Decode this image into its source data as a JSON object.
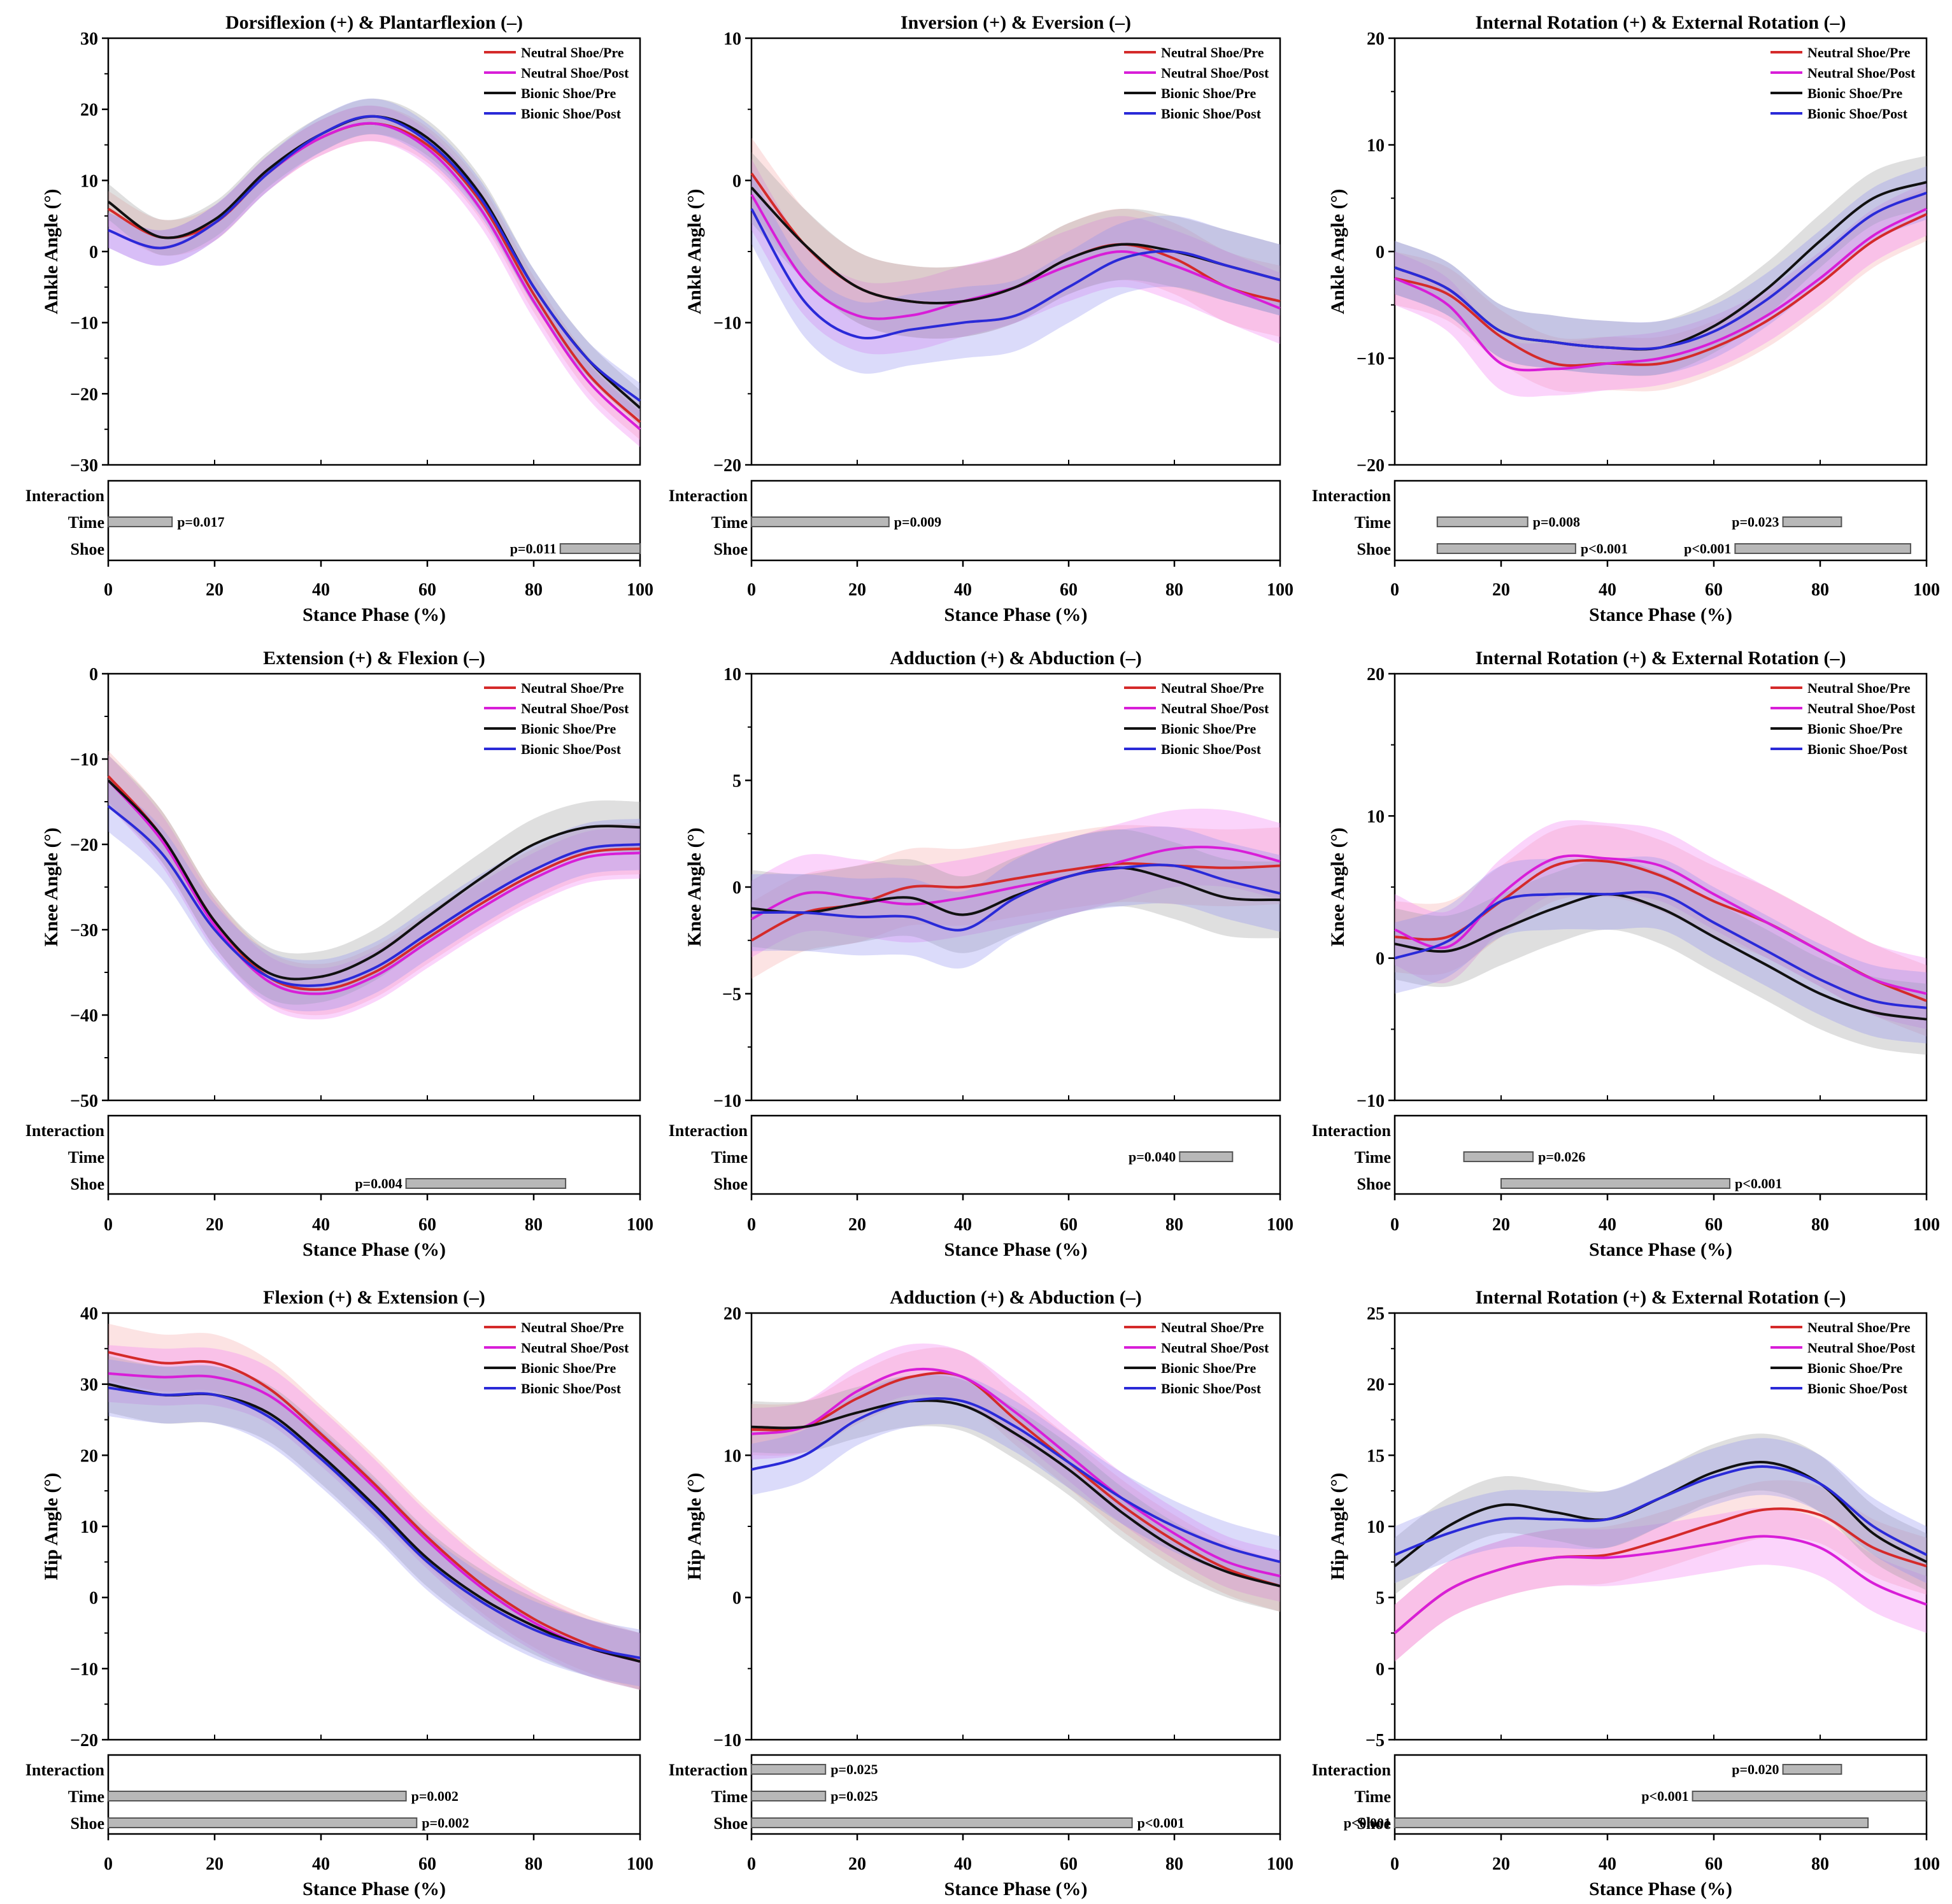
{
  "figure": {
    "xlabel": "Stance Phase (%)",
    "xticks": [
      0,
      20,
      40,
      60,
      80,
      100
    ],
    "sig_rows": [
      "Interaction",
      "Time",
      "Shoe"
    ],
    "legend": [
      {
        "name": "Neutral Shoe/Pre",
        "color": "#d42a2a"
      },
      {
        "name": "Neutral Shoe/Post",
        "color": "#d81ed8"
      },
      {
        "name": "Bionic Shoe/Pre",
        "color": "#111111"
      },
      {
        "name": "Bionic Shoe/Post",
        "color": "#2a2ad8"
      }
    ],
    "band_colors": [
      "#f6a7a7",
      "#f27af2",
      "#9a9a9a",
      "#8f8ff0"
    ]
  },
  "chart_data": [
    {
      "type": "line",
      "title": "Dorsiflexion (+) & Plantarflexion (–)",
      "ylabel": "Ankle Angle (°)",
      "ylim": [
        -30,
        30
      ],
      "yticks": [
        -30,
        -20,
        -10,
        0,
        10,
        20,
        30
      ],
      "x": [
        0,
        10,
        20,
        30,
        40,
        50,
        60,
        70,
        80,
        90,
        100
      ],
      "series": [
        {
          "name": "Neutral Shoe/Pre",
          "values": [
            6,
            2,
            4,
            11,
            16,
            18,
            15,
            7,
            -6,
            -17,
            -24
          ]
        },
        {
          "name": "Neutral Shoe/Post",
          "values": [
            3,
            0.5,
            4,
            11,
            16,
            18,
            14.5,
            6,
            -7,
            -18,
            -25
          ]
        },
        {
          "name": "Bionic Shoe/Pre",
          "values": [
            7,
            2,
            4.5,
            11.5,
            16.5,
            19,
            16,
            8,
            -5,
            -15,
            -22
          ]
        },
        {
          "name": "Bionic Shoe/Post",
          "values": [
            3,
            0.5,
            4,
            11,
            16.5,
            19,
            15.5,
            7.5,
            -5,
            -15,
            -21
          ]
        }
      ],
      "band_halfwidth": 2.5,
      "significance": [
        {
          "row": "Time",
          "start": 0,
          "end": 12,
          "label": "p=0.017"
        },
        {
          "row": "Shoe",
          "start": 85,
          "end": 100,
          "label": "p=0.011"
        }
      ]
    },
    {
      "type": "line",
      "title": "Inversion (+) & Eversion (–)",
      "ylabel": "Ankle Angle (°)",
      "ylim": [
        -20,
        10
      ],
      "yticks": [
        -20,
        -10,
        0,
        10
      ],
      "x": [
        0,
        10,
        20,
        30,
        40,
        50,
        60,
        70,
        80,
        90,
        100
      ],
      "series": [
        {
          "name": "Neutral Shoe/Pre",
          "values": [
            0.5,
            -4.5,
            -7.5,
            -8.5,
            -8.5,
            -7.5,
            -5.5,
            -4.5,
            -5.5,
            -7.5,
            -8.5
          ]
        },
        {
          "name": "Neutral Shoe/Post",
          "values": [
            -1,
            -7,
            -9.5,
            -9.5,
            -8.5,
            -7.5,
            -6,
            -5,
            -6,
            -7.5,
            -9
          ]
        },
        {
          "name": "Bionic Shoe/Pre",
          "values": [
            -0.5,
            -4.5,
            -7.5,
            -8.5,
            -8.5,
            -7.5,
            -5.5,
            -4.5,
            -5,
            -6,
            -7
          ]
        },
        {
          "name": "Bionic Shoe/Post",
          "values": [
            -2,
            -8.5,
            -11,
            -10.5,
            -10,
            -9.5,
            -7.5,
            -5.5,
            -5,
            -6,
            -7
          ]
        }
      ],
      "band_halfwidth": 2.5,
      "significance": [
        {
          "row": "Time",
          "start": 0,
          "end": 26,
          "label": "p=0.009"
        }
      ]
    },
    {
      "type": "line",
      "title": "Internal Rotation (+) & External Rotation  (–)",
      "ylabel": "Ankle Angle (°)",
      "ylim": [
        -20,
        20
      ],
      "yticks": [
        -20,
        -10,
        0,
        10,
        20
      ],
      "x": [
        0,
        10,
        20,
        30,
        40,
        50,
        60,
        70,
        80,
        90,
        100
      ],
      "series": [
        {
          "name": "Neutral Shoe/Pre",
          "values": [
            -2.5,
            -4,
            -8,
            -10.5,
            -10.5,
            -10.5,
            -9,
            -6.5,
            -3,
            1,
            3.5
          ]
        },
        {
          "name": "Neutral Shoe/Post",
          "values": [
            -2.5,
            -5,
            -10.5,
            -11,
            -10.5,
            -10,
            -8.5,
            -6,
            -2.5,
            1.5,
            4
          ]
        },
        {
          "name": "Bionic Shoe/Pre",
          "values": [
            -1.5,
            -3.5,
            -7.5,
            -8.5,
            -9,
            -9,
            -7,
            -3.5,
            1,
            5,
            6.5
          ]
        },
        {
          "name": "Bionic Shoe/Post",
          "values": [
            -1.5,
            -3.5,
            -7.5,
            -8.5,
            -9,
            -9,
            -7.5,
            -4.5,
            -0.5,
            3.5,
            5.5
          ]
        }
      ],
      "band_halfwidth": 2.5,
      "significance": [
        {
          "row": "Time",
          "start": 8,
          "end": 25,
          "label": "p=0.008"
        },
        {
          "row": "Time",
          "start": 73,
          "end": 84,
          "label": "p=0.023"
        },
        {
          "row": "Shoe",
          "start": 8,
          "end": 34,
          "label": "p<0.001"
        },
        {
          "row": "Shoe",
          "start": 64,
          "end": 97,
          "label": "p<0.001"
        }
      ]
    },
    {
      "type": "line",
      "title": "Extension (+) & Flexion (–)",
      "ylabel": "Knee Angle (°)",
      "ylim": [
        -50,
        0
      ],
      "yticks": [
        -50,
        -40,
        -30,
        -20,
        -10,
        0
      ],
      "x": [
        0,
        10,
        20,
        30,
        40,
        50,
        60,
        70,
        80,
        90,
        100
      ],
      "series": [
        {
          "name": "Neutral Shoe/Pre",
          "values": [
            -12,
            -19,
            -29,
            -35.5,
            -37,
            -35,
            -31,
            -27,
            -23.5,
            -21,
            -20.5
          ]
        },
        {
          "name": "Neutral Shoe/Post",
          "values": [
            -12.5,
            -19.5,
            -29.5,
            -36,
            -37.5,
            -35.5,
            -31.5,
            -27.5,
            -24,
            -21.5,
            -21
          ]
        },
        {
          "name": "Bionic Shoe/Pre",
          "values": [
            -12.5,
            -19,
            -29,
            -35,
            -35.5,
            -33,
            -28.5,
            -24,
            -20,
            -18,
            -18
          ]
        },
        {
          "name": "Bionic Shoe/Post",
          "values": [
            -15.5,
            -21,
            -30,
            -35.5,
            -36.5,
            -34.5,
            -30.5,
            -26.5,
            -23,
            -20.5,
            -20
          ]
        }
      ],
      "band_halfwidth": 3,
      "significance": [
        {
          "row": "Shoe",
          "start": 56,
          "end": 86,
          "label": "p=0.004"
        }
      ]
    },
    {
      "type": "line",
      "title": "Adduction (+) & Abduction (–)",
      "ylabel": "Knee Angle (°)",
      "ylim": [
        -10,
        10
      ],
      "yticks": [
        -10,
        -5,
        0,
        5,
        10
      ],
      "x": [
        0,
        10,
        20,
        30,
        40,
        50,
        60,
        70,
        80,
        90,
        100
      ],
      "series": [
        {
          "name": "Neutral Shoe/Pre",
          "values": [
            -2.5,
            -1.2,
            -0.8,
            0,
            0,
            0.4,
            0.8,
            1.1,
            1,
            0.9,
            1
          ]
        },
        {
          "name": "Neutral Shoe/Post",
          "values": [
            -1.5,
            -0.3,
            -0.5,
            -0.8,
            -0.5,
            0,
            0.5,
            1.2,
            1.8,
            1.8,
            1.2
          ]
        },
        {
          "name": "Bionic Shoe/Pre",
          "values": [
            -1,
            -1.2,
            -0.8,
            -0.5,
            -1.3,
            -0.4,
            0.5,
            0.9,
            0.3,
            -0.5,
            -0.6
          ]
        },
        {
          "name": "Bionic Shoe/Post",
          "values": [
            -1.2,
            -1.2,
            -1.4,
            -1.4,
            -2,
            -0.5,
            0.5,
            0.9,
            1,
            0.3,
            -0.3
          ]
        }
      ],
      "band_halfwidth": 1.8,
      "significance": [
        {
          "row": "Time",
          "start": 81,
          "end": 91,
          "label": "p=0.040"
        }
      ]
    },
    {
      "type": "line",
      "title": "Internal Rotation (+) & External Rotation  (–)",
      "ylabel": "Knee Angle (°)",
      "ylim": [
        -10,
        20
      ],
      "yticks": [
        -10,
        0,
        10,
        20
      ],
      "x": [
        0,
        10,
        20,
        30,
        40,
        50,
        60,
        70,
        80,
        90,
        100
      ],
      "series": [
        {
          "name": "Neutral Shoe/Pre",
          "values": [
            1.5,
            1.5,
            4,
            6.5,
            6.8,
            5.8,
            4,
            2.5,
            0.5,
            -1.5,
            -3
          ]
        },
        {
          "name": "Neutral Shoe/Post",
          "values": [
            2,
            0.8,
            4.5,
            7,
            7,
            6.5,
            4.5,
            2.5,
            0.5,
            -1.5,
            -2.5
          ]
        },
        {
          "name": "Bionic Shoe/Pre",
          "values": [
            1,
            0.5,
            2,
            3.5,
            4.5,
            3.5,
            1.5,
            -0.5,
            -2.5,
            -3.8,
            -4.3
          ]
        },
        {
          "name": "Bionic Shoe/Post",
          "values": [
            0,
            1.2,
            4,
            4.5,
            4.5,
            4.5,
            2.5,
            0.5,
            -1.5,
            -3,
            -3.5
          ]
        }
      ],
      "band_halfwidth": 2.5,
      "significance": [
        {
          "row": "Time",
          "start": 13,
          "end": 26,
          "label": "p=0.026"
        },
        {
          "row": "Shoe",
          "start": 20,
          "end": 63,
          "label": "p<0.001"
        }
      ]
    },
    {
      "type": "line",
      "title": "Flexion (+) & Extension (–)",
      "ylabel": "Hip Angle (°)",
      "ylim": [
        -20,
        40
      ],
      "yticks": [
        -20,
        -10,
        0,
        10,
        20,
        30,
        40
      ],
      "x": [
        0,
        10,
        20,
        30,
        40,
        50,
        60,
        70,
        80,
        90,
        100
      ],
      "series": [
        {
          "name": "Neutral Shoe/Pre",
          "values": [
            34.5,
            33,
            33,
            29.5,
            23,
            16,
            8.5,
            2,
            -3,
            -6.5,
            -9
          ]
        },
        {
          "name": "Neutral Shoe/Post",
          "values": [
            31.5,
            31,
            31,
            28.5,
            22.5,
            15.5,
            8,
            1.5,
            -3.5,
            -7,
            -9
          ]
        },
        {
          "name": "Bionic Shoe/Pre",
          "values": [
            30,
            28.5,
            28.5,
            26,
            20,
            13,
            5.5,
            0,
            -4,
            -7,
            -9
          ]
        },
        {
          "name": "Bionic Shoe/Post",
          "values": [
            29.5,
            28.5,
            28.5,
            25.5,
            19.5,
            12.5,
            5,
            -0.5,
            -4.5,
            -7,
            -8.5
          ]
        }
      ],
      "band_halfwidth": 4,
      "significance": [
        {
          "row": "Time",
          "start": 0,
          "end": 56,
          "label": "p=0.002"
        },
        {
          "row": "Shoe",
          "start": 0,
          "end": 58,
          "label": "p=0.002"
        }
      ]
    },
    {
      "type": "line",
      "title": "Adduction (+) & Abduction (–)",
      "ylabel": "Hip Angle (°)",
      "ylim": [
        -10,
        20
      ],
      "yticks": [
        -10,
        0,
        10,
        20
      ],
      "x": [
        0,
        10,
        20,
        30,
        40,
        50,
        60,
        70,
        80,
        90,
        100
      ],
      "series": [
        {
          "name": "Neutral Shoe/Pre",
          "values": [
            11.8,
            12,
            14,
            15.5,
            15.5,
            12.5,
            9.5,
            6.5,
            4,
            2,
            0.8
          ]
        },
        {
          "name": "Neutral Shoe/Post",
          "values": [
            11.5,
            12,
            14.5,
            16,
            15.5,
            13,
            10,
            7,
            4.5,
            2.5,
            1.5
          ]
        },
        {
          "name": "Bionic Shoe/Pre",
          "values": [
            12,
            12,
            13,
            13.8,
            13.5,
            11.5,
            9,
            6,
            3.5,
            1.8,
            0.8
          ]
        },
        {
          "name": "Bionic Shoe/Post",
          "values": [
            9,
            10,
            12.5,
            13.8,
            13.8,
            12,
            9.5,
            7,
            5,
            3.5,
            2.5
          ]
        }
      ],
      "band_halfwidth": 1.8,
      "significance": [
        {
          "row": "Interaction",
          "start": 0,
          "end": 14,
          "label": "p=0.025"
        },
        {
          "row": "Time",
          "start": 0,
          "end": 14,
          "label": "p=0.025"
        },
        {
          "row": "Shoe",
          "start": 0,
          "end": 72,
          "label": "p<0.001"
        }
      ]
    },
    {
      "type": "line",
      "title": "Internal Rotation (+) & External Rotation  (–)",
      "ylabel": "Hip Angle (°)",
      "ylim": [
        -5,
        25
      ],
      "yticks": [
        -5,
        0,
        5,
        10,
        15,
        20,
        25
      ],
      "x": [
        0,
        10,
        20,
        30,
        40,
        50,
        60,
        70,
        80,
        90,
        100
      ],
      "series": [
        {
          "name": "Neutral Shoe/Pre",
          "values": [
            2.5,
            5.5,
            7,
            7.8,
            8,
            9,
            10.2,
            11.2,
            10.8,
            8.5,
            7.2
          ]
        },
        {
          "name": "Neutral Shoe/Post",
          "values": [
            2.5,
            5.5,
            7,
            7.8,
            7.8,
            8.2,
            8.8,
            9.3,
            8.5,
            6,
            4.5
          ]
        },
        {
          "name": "Bionic Shoe/Pre",
          "values": [
            7.2,
            10,
            11.5,
            11,
            10.5,
            12,
            13.8,
            14.5,
            13,
            9.5,
            7.5
          ]
        },
        {
          "name": "Bionic Shoe/Post",
          "values": [
            8,
            9.5,
            10.5,
            10.5,
            10.5,
            12,
            13.5,
            14.2,
            13,
            10,
            8
          ]
        }
      ],
      "band_halfwidth": 2,
      "significance": [
        {
          "row": "Interaction",
          "start": 73,
          "end": 84,
          "label": "p=0.020"
        },
        {
          "row": "Time",
          "start": 56,
          "end": 100,
          "label": "p<0.001"
        },
        {
          "row": "Shoe",
          "start": 0,
          "end": 89,
          "label": "p<0.001"
        }
      ]
    }
  ]
}
